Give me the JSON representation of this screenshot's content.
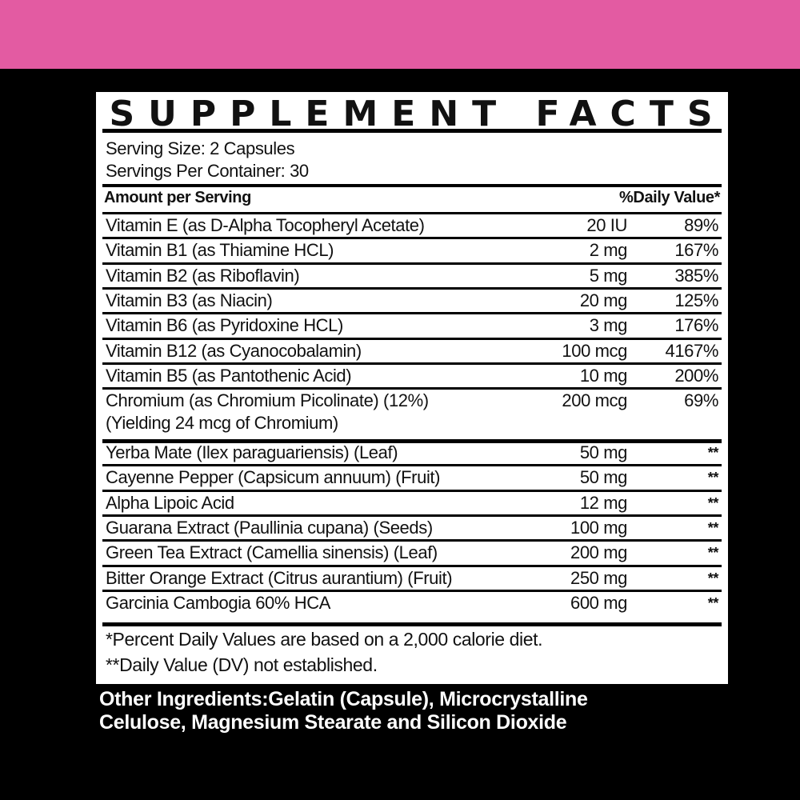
{
  "colors": {
    "band": "#e35ba2",
    "background": "#000000",
    "panel": "#ffffff"
  },
  "title": "SUPPLEMENT FACTS",
  "serving_size": "Serving Size: 2 Capsules",
  "servings_per_container": "Servings Per Container: 30",
  "header": {
    "amount": "Amount per Serving",
    "dv": "%Daily Value*"
  },
  "rows": [
    {
      "name": "Vitamin E (as D-Alpha Tocopheryl Acetate)",
      "amount": "20 IU",
      "dv": "89%"
    },
    {
      "name": "Vitamin B1 (as Thiamine HCL)",
      "amount": "2 mg",
      "dv": "167%"
    },
    {
      "name": "Vitamin B2 (as Riboflavin)",
      "amount": "5 mg",
      "dv": "385%"
    },
    {
      "name": "Vitamin B3 (as Niacin)",
      "amount": "20 mg",
      "dv": "125%"
    },
    {
      "name": "Vitamin B6 (as Pyridoxine HCL)",
      "amount": "3 mg",
      "dv": "176%"
    },
    {
      "name": "Vitamin B12 (as Cyanocobalamin)",
      "amount": "100 mcg",
      "dv": "4167%"
    },
    {
      "name": "Vitamin B5 (as Pantothenic Acid)",
      "amount": "10 mg",
      "dv": "200%"
    },
    {
      "name": "Chromium (as Chromium Picolinate) (12%)",
      "name2": "(Yielding 24 mcg of Chromium)",
      "amount": "200 mcg",
      "dv": "69%"
    },
    {
      "name": "Yerba Mate (Ilex paraguariensis) (Leaf)",
      "amount": "50 mg",
      "dv": "**"
    },
    {
      "name": "Cayenne Pepper (Capsicum annuum) (Fruit)",
      "amount": "50 mg",
      "dv": "**"
    },
    {
      "name": "Alpha Lipoic Acid",
      "amount": "12 mg",
      "dv": "**"
    },
    {
      "name": "Guarana Extract (Paullinia cupana) (Seeds)",
      "amount": "100 mg",
      "dv": "**"
    },
    {
      "name": "Green Tea Extract (Camellia sinensis) (Leaf)",
      "amount": "200 mg",
      "dv": "**"
    },
    {
      "name": "Bitter Orange Extract (Citrus aurantium) (Fruit)",
      "amount": "250 mg",
      "dv": "**"
    },
    {
      "name": "Garcinia Cambogia 60% HCA",
      "amount": "600 mg",
      "dv": "**"
    }
  ],
  "footnote1": "*Percent Daily Values are based on a 2,000 calorie diet.",
  "footnote2": "**Daily Value (DV) not established.",
  "other_ingredients_1": "Other Ingredients:Gelatin (Capsule), Microcrystalline",
  "other_ingredients_2": "Celulose, Magnesium Stearate and Silicon Dioxide"
}
